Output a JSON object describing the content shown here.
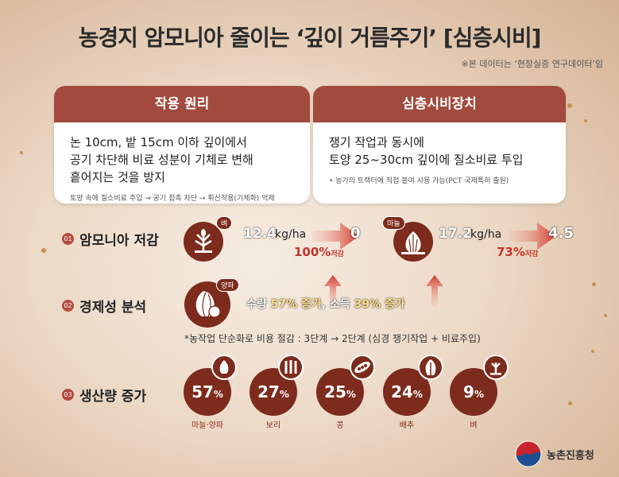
{
  "title": "농경지 암모니아 줄이는 ‘깊이 거름주기’ [심층시비]",
  "note": "※본 데이터는 ‘현장실증 연구데이터’임",
  "cards": [
    {
      "heading": "작용 원리",
      "main": [
        "논 10cm, 밭 15cm 이하 깊이에서",
        "공기 차단해 비료 성분이 기체로 변해",
        "흩어지는 것을 방지"
      ],
      "sub": "토양 속에 질소비료 주입 → 공기 접촉 차단 → 휘산작용(기체화) 억제"
    },
    {
      "heading": "심층시비장치",
      "main": [
        "쟁기 작업과 동시에",
        "토양 25~30cm 깊이에 질소비료 투입"
      ],
      "sub": "• 농가의 트랙터에 직접 붙여 사용 가능(PCT 국제특허 출원)"
    }
  ],
  "section1": {
    "num": "01",
    "label": "암모니아 저감",
    "rice": {
      "tag": "벼",
      "before": "12.4",
      "unit": "kg/ha",
      "after": "0",
      "pct": "100%",
      "pct_suffix": "저감"
    },
    "garlic": {
      "tag": "마늘",
      "before": "17.2",
      "unit": "kg/ha",
      "after": "4.5",
      "pct": "73%",
      "pct_suffix": "저감"
    }
  },
  "section2": {
    "num": "02",
    "label": "경제성 분석",
    "tag": "양파",
    "yield_label": "수량",
    "yield_value": "57% 증가",
    "income_label": "소득",
    "income_value": "39% 증가",
    "cost_note": "*농작업 단순화로 비용 절감 : 3단계 → 2단계 (심경 쟁기작업 + 비료주입)"
  },
  "section3": {
    "num": "03",
    "label": "생산량 증가",
    "crops": [
      {
        "value": "57",
        "unit": "%",
        "label": "마늘·양파",
        "icon": "garlic-icon"
      },
      {
        "value": "27",
        "unit": "%",
        "label": "보리",
        "icon": "barley-icon"
      },
      {
        "value": "25",
        "unit": "%",
        "label": "콩",
        "icon": "bean-icon"
      },
      {
        "value": "24",
        "unit": "%",
        "label": "배추",
        "icon": "cabbage-icon"
      },
      {
        "value": "9",
        "unit": "%",
        "label": "벼",
        "icon": "rice-icon"
      }
    ]
  },
  "logo": {
    "text": "농촌진흥청"
  },
  "colors": {
    "accent": "#a14a3d",
    "circle": "#7c2b1d",
    "arrow": "#c7322a"
  }
}
